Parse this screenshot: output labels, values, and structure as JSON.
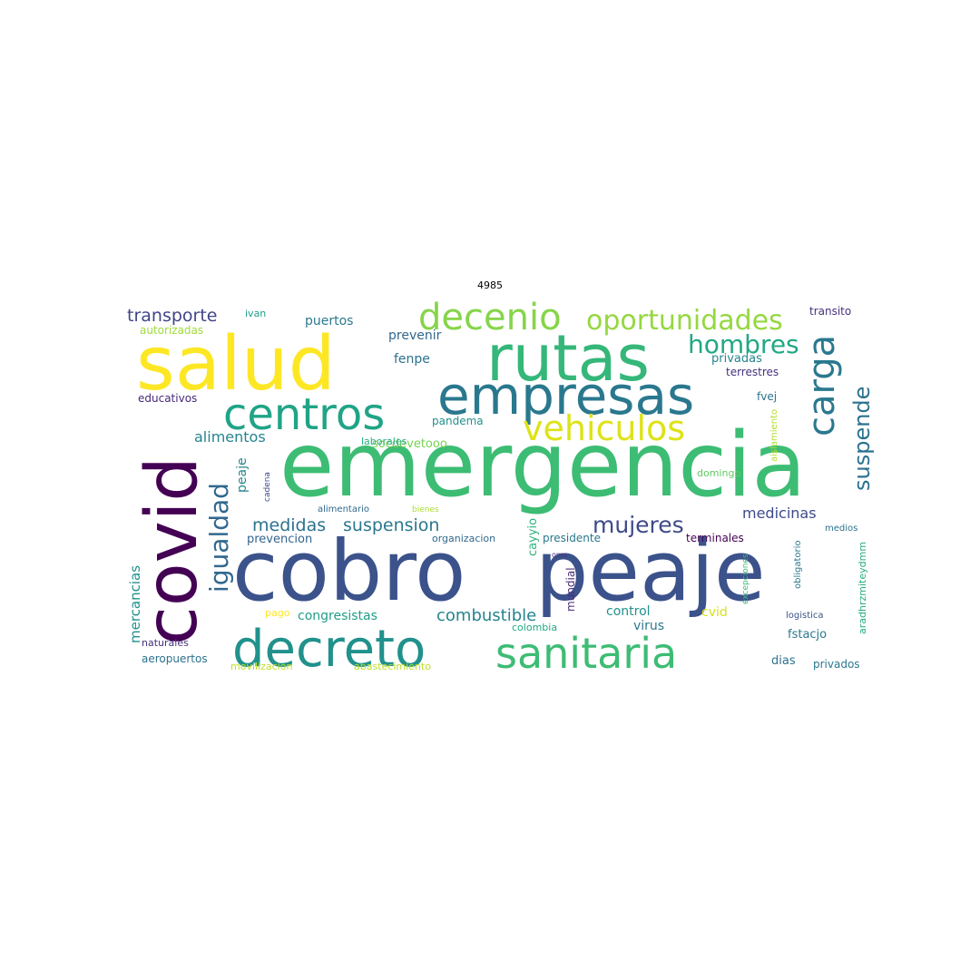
{
  "figure": {
    "title": "4985"
  },
  "wordcloud": {
    "words": [
      {
        "text": "emergencia",
        "color": "#3dbc74",
        "rotated": false
      },
      {
        "text": "cobro",
        "color": "#3b528b",
        "rotated": false
      },
      {
        "text": "peaje",
        "color": "#3b528b",
        "rotated": false
      },
      {
        "text": "covid",
        "color": "#440154",
        "rotated": true
      },
      {
        "text": "salud",
        "color": "#fde725",
        "rotated": false
      },
      {
        "text": "rutas",
        "color": "#35b779",
        "rotated": false
      },
      {
        "text": "empresas",
        "color": "#2a788e",
        "rotated": false
      },
      {
        "text": "decreto",
        "color": "#21918c",
        "rotated": false
      },
      {
        "text": "sanitaria",
        "color": "#3dbc74",
        "rotated": false
      },
      {
        "text": "centros",
        "color": "#20a486",
        "rotated": false
      },
      {
        "text": "vehiculos",
        "color": "#dde318",
        "rotated": false
      },
      {
        "text": "decenio",
        "color": "#86d549",
        "rotated": false
      },
      {
        "text": "oportunidades",
        "color": "#95d840",
        "rotated": false
      },
      {
        "text": "carga",
        "color": "#2a788e",
        "rotated": true
      },
      {
        "text": "hombres",
        "color": "#22a884",
        "rotated": false
      },
      {
        "text": "igualdad",
        "color": "#31688e",
        "rotated": true
      },
      {
        "text": "suspende",
        "color": "#2c728e",
        "rotated": true
      },
      {
        "text": "mujeres",
        "color": "#3e4a89",
        "rotated": false
      },
      {
        "text": "medidas",
        "color": "#2c728e",
        "rotated": false
      },
      {
        "text": "suspension",
        "color": "#2a788e",
        "rotated": false
      },
      {
        "text": "combustible",
        "color": "#25848e",
        "rotated": false
      },
      {
        "text": "medicinas",
        "color": "#3e4a89",
        "rotated": false
      },
      {
        "text": "transporte",
        "color": "#414487",
        "rotated": false
      },
      {
        "text": "alimentos",
        "color": "#25848e",
        "rotated": false
      },
      {
        "text": "mercancias",
        "color": "#21918c",
        "rotated": true
      },
      {
        "text": "peaje",
        "color": "#25848e",
        "rotated": true
      },
      {
        "text": "socdevetooo",
        "color": "#7ad151",
        "rotated": false
      },
      {
        "text": "pandema",
        "color": "#21918c",
        "rotated": false
      },
      {
        "text": "puertos",
        "color": "#2a788e",
        "rotated": false
      },
      {
        "text": "prevenir",
        "color": "#31688e",
        "rotated": false
      },
      {
        "text": "fenpe",
        "color": "#2c728e",
        "rotated": false
      },
      {
        "text": "privadas",
        "color": "#25848e",
        "rotated": false
      },
      {
        "text": "terrestres",
        "color": "#46327e",
        "rotated": false
      },
      {
        "text": "transito",
        "color": "#46327e",
        "rotated": false
      },
      {
        "text": "ivan",
        "color": "#1fa088",
        "rotated": false
      },
      {
        "text": "autorizadas",
        "color": "#a0da39",
        "rotated": false
      },
      {
        "text": "educativos",
        "color": "#482878",
        "rotated": false
      },
      {
        "text": "fvej",
        "color": "#2c728e",
        "rotated": false
      },
      {
        "text": "laborales",
        "color": "#27ad81",
        "rotated": false
      },
      {
        "text": "aislamiento",
        "color": "#b5de2b",
        "rotated": true
      },
      {
        "text": "domingo",
        "color": "#5ec962",
        "rotated": false
      },
      {
        "text": "cadena",
        "color": "#3e4a89",
        "rotated": true
      },
      {
        "text": "alimentario",
        "color": "#31688e",
        "rotated": false
      },
      {
        "text": "bienes",
        "color": "#addc30",
        "rotated": false
      },
      {
        "text": "prevencion",
        "color": "#33638d",
        "rotated": false
      },
      {
        "text": "organizacion",
        "color": "#31688e",
        "rotated": false
      },
      {
        "text": "presidente",
        "color": "#2a788e",
        "rotated": false
      },
      {
        "text": "cayyio",
        "color": "#2db27d",
        "rotated": true
      },
      {
        "text": "oms",
        "color": "#46327e",
        "rotated": false
      },
      {
        "text": "mundial",
        "color": "#482878",
        "rotated": true
      },
      {
        "text": "terminales",
        "color": "#440154",
        "rotated": false
      },
      {
        "text": "excepciones",
        "color": "#3dbc74",
        "rotated": true
      },
      {
        "text": "obligatorio",
        "color": "#2a788e",
        "rotated": true
      },
      {
        "text": "medios",
        "color": "#2c728e",
        "rotated": false
      },
      {
        "text": "aradhrzmiteydmm",
        "color": "#27ad81",
        "rotated": true
      },
      {
        "text": "logistica",
        "color": "#39568c",
        "rotated": false
      },
      {
        "text": "congresistas",
        "color": "#1f9e89",
        "rotated": false
      },
      {
        "text": "control",
        "color": "#21918c",
        "rotated": false
      },
      {
        "text": "cvid",
        "color": "#d8e219",
        "rotated": false
      },
      {
        "text": "fstacjo",
        "color": "#2a788e",
        "rotated": false
      },
      {
        "text": "virus",
        "color": "#2a788e",
        "rotated": false
      },
      {
        "text": "pago",
        "color": "#fde725",
        "rotated": false
      },
      {
        "text": "colombia",
        "color": "#22a884",
        "rotated": false
      },
      {
        "text": "naturales",
        "color": "#46327e",
        "rotated": false
      },
      {
        "text": "aeropuertos",
        "color": "#2c728e",
        "rotated": false
      },
      {
        "text": "movilizacion",
        "color": "#c2df23",
        "rotated": false
      },
      {
        "text": "abastecimiento",
        "color": "#bddf26",
        "rotated": false
      },
      {
        "text": "dias",
        "color": "#2c728e",
        "rotated": false
      },
      {
        "text": "privados",
        "color": "#2a788e",
        "rotated": false
      }
    ]
  }
}
